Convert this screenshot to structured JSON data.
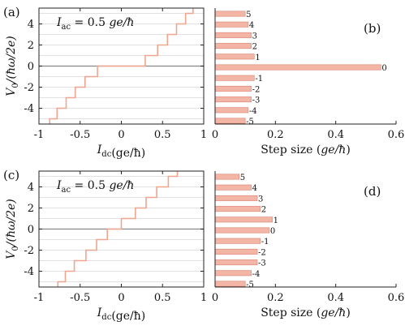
{
  "chart_data": [
    {
      "panel": "(a)",
      "type": "line",
      "annotation": "I_ac = 0.5 ge/ħ",
      "xlabel": "I_dc(ge/ħ)",
      "ylabel": "V_0/(ħω/2e)",
      "xlim": [
        -1,
        1
      ],
      "ylim": [
        -5.5,
        5.5
      ],
      "xticks": [
        "-1",
        "-0.5",
        "0",
        "0.5",
        "1"
      ],
      "yticks": [
        "-4",
        "-2",
        "0",
        "2",
        "4"
      ],
      "horizontal_grid": true,
      "step_edges": [
        -0.87,
        -0.78,
        -0.67,
        -0.56,
        -0.44,
        -0.29,
        0.29,
        0.44,
        0.56,
        0.67,
        0.78,
        0.87
      ],
      "series_color": "#f2a58e"
    },
    {
      "panel": "(b)",
      "type": "bar",
      "orientation": "horizontal",
      "categories": [
        "5",
        "4",
        "3",
        "2",
        "1",
        "0",
        "-1",
        "-2",
        "-3",
        "-4",
        "-5"
      ],
      "values": [
        0.1,
        0.11,
        0.12,
        0.12,
        0.13,
        0.55,
        0.13,
        0.12,
        0.12,
        0.11,
        0.1
      ],
      "xlabel": "Step size (ge/ħ)",
      "xlim": [
        0,
        0.6
      ],
      "xticks": [
        "0",
        "0.2",
        "0.4",
        "0.6"
      ],
      "bar_color": "#f2b5a6"
    },
    {
      "panel": "(c)",
      "type": "line",
      "annotation": "I_ac = 0.5 ge/ħ",
      "xlabel": "I_dc(ge/ħ)",
      "ylabel": "V_0/(ħω/2e)",
      "xlim": [
        -1,
        1
      ],
      "ylim": [
        -5.5,
        5.5
      ],
      "xticks": [
        "-1",
        "-0.5",
        "0",
        "0.5",
        "1"
      ],
      "yticks": [
        "-4",
        "-2",
        "0",
        "2",
        "4"
      ],
      "horizontal_grid": true,
      "step_edges": [
        -0.77,
        -0.68,
        -0.57,
        -0.43,
        -0.3,
        -0.17,
        0,
        0.17,
        0.3,
        0.43,
        0.57,
        0.68
      ],
      "series_color": "#f2a58e"
    },
    {
      "panel": "(d)",
      "type": "bar",
      "orientation": "horizontal",
      "categories": [
        "5",
        "4",
        "3",
        "2",
        "1",
        "0",
        "-1",
        "-2",
        "-3",
        "-4",
        "-5"
      ],
      "values": [
        0.08,
        0.12,
        0.14,
        0.15,
        0.19,
        0.18,
        0.15,
        0.14,
        0.14,
        0.12,
        0.1
      ],
      "xlabel": "Step size (ge/ħ)",
      "xlim": [
        0,
        0.6
      ],
      "xticks": [
        "0",
        "0.2",
        "0.4",
        "0.6"
      ],
      "bar_color": "#f2b5a6"
    }
  ]
}
